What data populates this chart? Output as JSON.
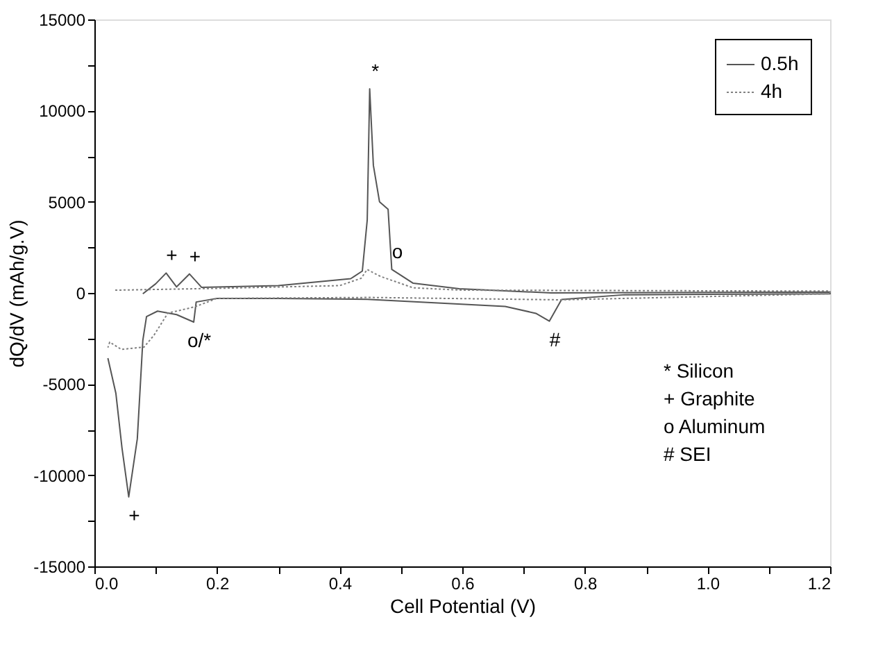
{
  "chart_data": {
    "type": "line",
    "xlabel": "Cell Potential (V)",
    "ylabel": "dQ/dV (mAh/g.V)",
    "xlim": [
      0,
      1.2
    ],
    "ylim": [
      -15000,
      15000
    ],
    "xticks": [
      {
        "value": 0,
        "label": "0.0"
      },
      {
        "value": 0.1,
        "label": null
      },
      {
        "value": 0.2,
        "label": "0.2"
      },
      {
        "value": 0.3,
        "label": null
      },
      {
        "value": 0.4,
        "label": "0.4"
      },
      {
        "value": 0.5,
        "label": null
      },
      {
        "value": 0.6,
        "label": "0.6"
      },
      {
        "value": 0.7,
        "label": null
      },
      {
        "value": 0.8,
        "label": "0.8"
      },
      {
        "value": 0.9,
        "label": null
      },
      {
        "value": 1.0,
        "label": "1.0"
      },
      {
        "value": 1.1,
        "label": null
      },
      {
        "value": 1.2,
        "label": "1.2"
      }
    ],
    "yticks": [
      -15000,
      {
        "value": -12500,
        "label": null
      },
      -10000,
      {
        "value": -7500,
        "label": null
      },
      -5000,
      {
        "value": -2500,
        "label": null
      },
      0,
      {
        "value": 2500,
        "label": null
      },
      5000,
      {
        "value": 7500,
        "label": null
      },
      10000,
      {
        "value": 12500,
        "label": null
      },
      15000
    ],
    "grid": false,
    "legend": "top right",
    "marker": "none",
    "series": [
      {
        "name": "0.5h",
        "color": "#555555",
        "line_style": "solid",
        "x": [
          0.079,
          0.1,
          0.117,
          0.134,
          0.155,
          0.175,
          0.3,
          0.418,
          0.437,
          0.445,
          0.449,
          0.455,
          0.465,
          0.479,
          0.485,
          0.52,
          0.595,
          0.745,
          1.2,
          1.2,
          0.865,
          0.762,
          0.742,
          0.72,
          0.67,
          0.445,
          0.3,
          0.2,
          0.166,
          0.162,
          0.134,
          0.103,
          0.085,
          0.079,
          0.07,
          0.056,
          0.045,
          0.035,
          0.022
        ],
        "values": [
          -50,
          500,
          1090,
          330,
          1040,
          300,
          400,
          780,
          1200,
          4000,
          11190,
          7000,
          5000,
          4590,
          1290,
          530,
          230,
          0,
          50,
          -50,
          -100,
          -360,
          -1550,
          -1120,
          -740,
          -350,
          -300,
          -300,
          -500,
          -1600,
          -1190,
          -1000,
          -1300,
          -2600,
          -8000,
          -11190,
          -8500,
          -5500,
          -3580
        ]
      },
      {
        "name": "4h",
        "color": "#808080",
        "line_style": "dotted",
        "x": [
          0.034,
          0.2,
          0.4,
          0.435,
          0.445,
          0.455,
          0.467,
          0.52,
          0.6,
          1.2,
          1.2,
          0.76,
          0.45,
          0.2,
          0.164,
          0.134,
          0.12,
          0.097,
          0.081,
          0.044,
          0.025,
          0.022
        ],
        "values": [
          150,
          250,
          400,
          800,
          1290,
          1100,
          900,
          280,
          150,
          100,
          -50,
          -380,
          -250,
          -300,
          -760,
          -1000,
          -1100,
          -2330,
          -2970,
          -3100,
          -2700,
          -3000
        ]
      }
    ],
    "annotations": [
      {
        "text": "*",
        "x": 0.449,
        "y": 11190
      },
      {
        "text": "+",
        "x": 0.117,
        "y": 1090
      },
      {
        "text": "+",
        "x": 0.155,
        "y": 1040
      },
      {
        "text": "o",
        "x": 0.485,
        "y": 1290
      },
      {
        "text": "o/*",
        "x": 0.162,
        "y": -1600
      },
      {
        "text": "#",
        "x": 0.742,
        "y": -1550
      },
      {
        "text": "+",
        "x": 0.056,
        "y": -11190
      },
      "* Silicon",
      "+ Graphite",
      "o Aluminum",
      "# SEI"
    ]
  }
}
